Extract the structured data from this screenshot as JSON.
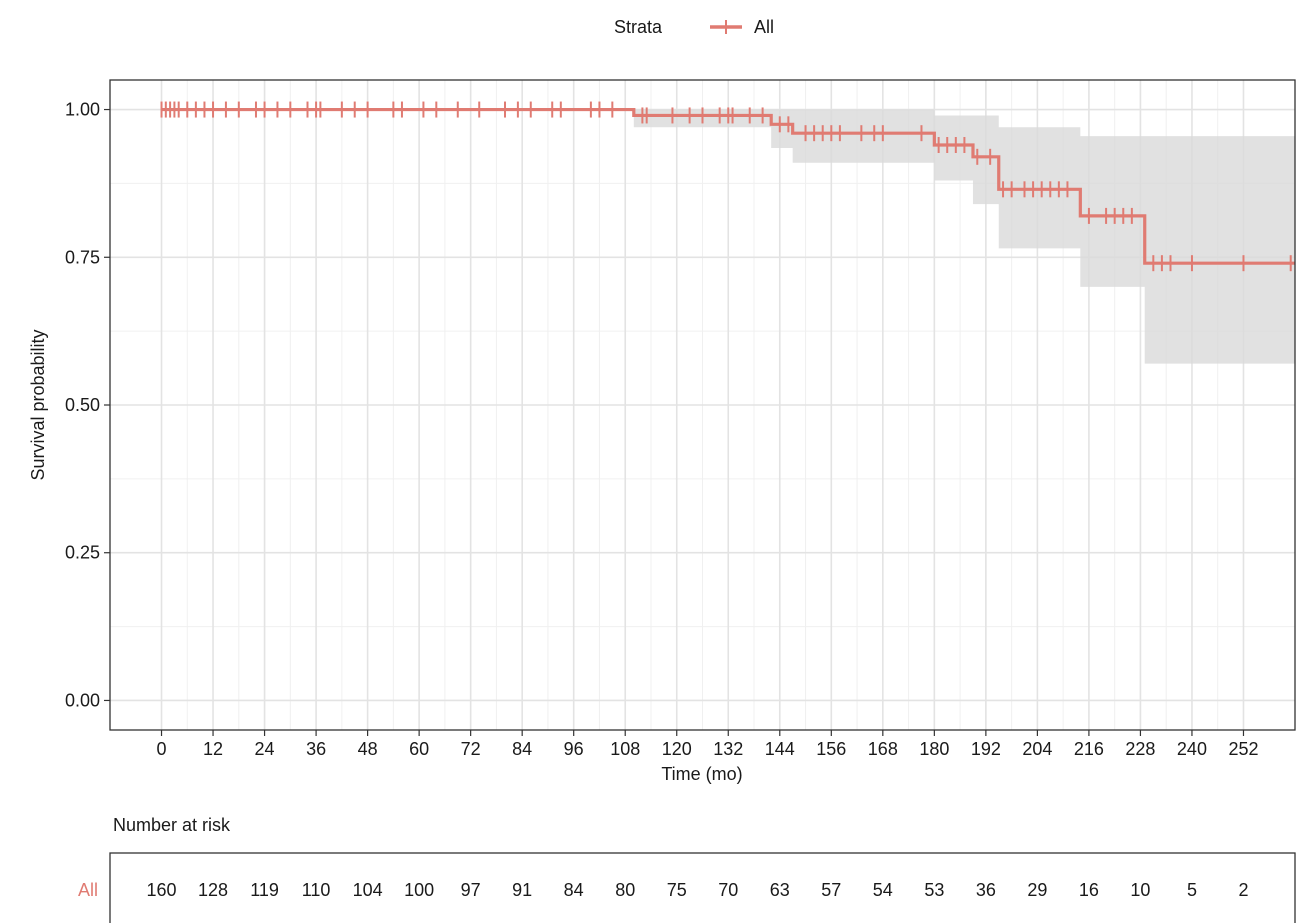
{
  "chart_data": {
    "type": "line",
    "legend": {
      "title": "Strata",
      "placement": "top",
      "entries": [
        "All"
      ]
    },
    "xlabel": "Time (mo)",
    "ylabel": "Survival probability",
    "xlim": [
      -12,
      264
    ],
    "ylim": [
      0,
      1
    ],
    "x_ticks": [
      0,
      12,
      24,
      36,
      48,
      60,
      72,
      84,
      96,
      108,
      120,
      132,
      144,
      156,
      168,
      180,
      192,
      204,
      216,
      228,
      240,
      252
    ],
    "y_ticks": [
      0,
      0.25,
      0.5,
      0.75,
      1.0
    ],
    "y_tick_labels": [
      "0.00",
      "0.25",
      "0.50",
      "0.75",
      "1.00"
    ],
    "grid": true,
    "series": [
      {
        "name": "All",
        "color": "#e07b72",
        "step": [
          [
            0,
            1.0
          ],
          [
            110,
            1.0
          ],
          [
            110,
            0.99
          ],
          [
            142,
            0.99
          ],
          [
            142,
            0.975
          ],
          [
            147,
            0.975
          ],
          [
            147,
            0.96
          ],
          [
            180,
            0.96
          ],
          [
            180,
            0.94
          ],
          [
            189,
            0.94
          ],
          [
            189,
            0.92
          ],
          [
            195,
            0.92
          ],
          [
            195,
            0.865
          ],
          [
            214,
            0.865
          ],
          [
            214,
            0.82
          ],
          [
            229,
            0.82
          ],
          [
            229,
            0.74
          ],
          [
            264,
            0.74
          ]
        ],
        "ci": [
          [
            0,
            1.0,
            1.0
          ],
          [
            110,
            1.0,
            1.0
          ],
          [
            110,
            0.97,
            1.0
          ],
          [
            142,
            0.97,
            1.0
          ],
          [
            142,
            0.935,
            1.0
          ],
          [
            147,
            0.935,
            1.0
          ],
          [
            147,
            0.91,
            1.0
          ],
          [
            180,
            0.91,
            1.0
          ],
          [
            180,
            0.88,
            0.99
          ],
          [
            189,
            0.88,
            0.99
          ],
          [
            189,
            0.84,
            0.99
          ],
          [
            195,
            0.84,
            0.99
          ],
          [
            195,
            0.765,
            0.97
          ],
          [
            214,
            0.765,
            0.97
          ],
          [
            214,
            0.7,
            0.955
          ],
          [
            229,
            0.7,
            0.955
          ],
          [
            229,
            0.57,
            0.955
          ],
          [
            264,
            0.57,
            0.955
          ]
        ],
        "censors": [
          [
            0,
            1.0
          ],
          [
            1,
            1.0
          ],
          [
            2,
            1.0
          ],
          [
            3,
            1.0
          ],
          [
            4,
            1.0
          ],
          [
            6,
            1.0
          ],
          [
            8,
            1.0
          ],
          [
            10,
            1.0
          ],
          [
            12,
            1.0
          ],
          [
            15,
            1.0
          ],
          [
            18,
            1.0
          ],
          [
            22,
            1.0
          ],
          [
            24,
            1.0
          ],
          [
            27,
            1.0
          ],
          [
            30,
            1.0
          ],
          [
            34,
            1.0
          ],
          [
            36,
            1.0
          ],
          [
            37,
            1.0
          ],
          [
            42,
            1.0
          ],
          [
            45,
            1.0
          ],
          [
            48,
            1.0
          ],
          [
            54,
            1.0
          ],
          [
            56,
            1.0
          ],
          [
            61,
            1.0
          ],
          [
            64,
            1.0
          ],
          [
            69,
            1.0
          ],
          [
            74,
            1.0
          ],
          [
            80,
            1.0
          ],
          [
            83,
            1.0
          ],
          [
            86,
            1.0
          ],
          [
            91,
            1.0
          ],
          [
            93,
            1.0
          ],
          [
            100,
            1.0
          ],
          [
            102,
            1.0
          ],
          [
            105,
            1.0
          ],
          [
            112,
            0.99
          ],
          [
            113,
            0.99
          ],
          [
            119,
            0.99
          ],
          [
            123,
            0.99
          ],
          [
            126,
            0.99
          ],
          [
            130,
            0.99
          ],
          [
            132,
            0.99
          ],
          [
            133,
            0.99
          ],
          [
            137,
            0.99
          ],
          [
            140,
            0.99
          ],
          [
            144,
            0.975
          ],
          [
            146,
            0.975
          ],
          [
            150,
            0.96
          ],
          [
            152,
            0.96
          ],
          [
            154,
            0.96
          ],
          [
            156,
            0.96
          ],
          [
            158,
            0.96
          ],
          [
            163,
            0.96
          ],
          [
            166,
            0.96
          ],
          [
            168,
            0.96
          ],
          [
            177,
            0.96
          ],
          [
            181,
            0.94
          ],
          [
            183,
            0.94
          ],
          [
            185,
            0.94
          ],
          [
            187,
            0.94
          ],
          [
            190,
            0.92
          ],
          [
            193,
            0.92
          ],
          [
            196,
            0.865
          ],
          [
            198,
            0.865
          ],
          [
            201,
            0.865
          ],
          [
            203,
            0.865
          ],
          [
            205,
            0.865
          ],
          [
            207,
            0.865
          ],
          [
            209,
            0.865
          ],
          [
            211,
            0.865
          ],
          [
            216,
            0.82
          ],
          [
            220,
            0.82
          ],
          [
            222,
            0.82
          ],
          [
            224,
            0.82
          ],
          [
            226,
            0.82
          ],
          [
            231,
            0.74
          ],
          [
            233,
            0.74
          ],
          [
            235,
            0.74
          ],
          [
            240,
            0.74
          ],
          [
            252,
            0.74
          ],
          [
            263,
            0.74
          ]
        ]
      }
    ],
    "risk_table": {
      "title": "Number at risk",
      "strata": "All",
      "times": [
        0,
        12,
        24,
        36,
        48,
        60,
        72,
        84,
        96,
        108,
        120,
        132,
        144,
        156,
        168,
        180,
        192,
        204,
        216,
        228,
        240,
        252
      ],
      "counts": [
        160,
        128,
        119,
        110,
        104,
        100,
        97,
        91,
        84,
        80,
        75,
        70,
        63,
        57,
        54,
        53,
        36,
        29,
        16,
        10,
        5,
        2
      ]
    }
  }
}
